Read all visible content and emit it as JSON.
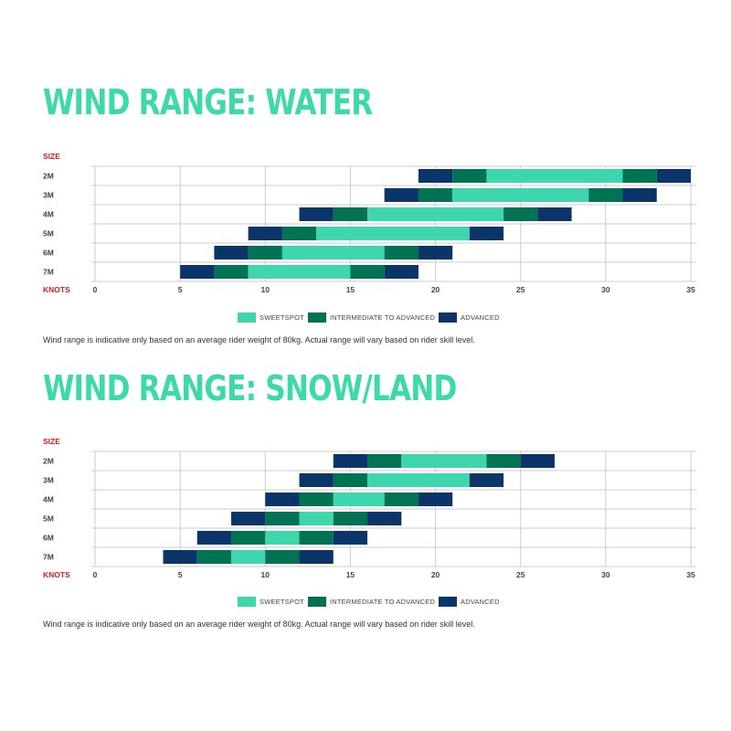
{
  "colors": {
    "title": "#3dd9a8",
    "sweetspot": "#3dd6ad",
    "intermediate": "#007355",
    "advanced": "#0b3468",
    "axis_label": "#d21f1f",
    "grid": "#cccccc"
  },
  "legend": [
    {
      "key": "sweetspot",
      "label": "SWEETSPOT"
    },
    {
      "key": "intermediate",
      "label": "INTERMEDIATE TO ADVANCED"
    },
    {
      "key": "advanced",
      "label": "ADVANCED"
    }
  ],
  "chart_data": [
    {
      "type": "bar",
      "subtype": "stacked-range",
      "title": "WIND RANGE: WATER",
      "ylabel": "SIZE",
      "xlabel": "KNOTS",
      "xlim": [
        0,
        35
      ],
      "xticks": [
        "0",
        "5",
        "10",
        "15",
        "20",
        "25",
        "30",
        "35"
      ],
      "grid": "vertical",
      "categories": [
        "2M",
        "3M",
        "4M",
        "5M",
        "6M",
        "7M"
      ],
      "series": [
        {
          "category": "2M",
          "segments": [
            {
              "start": 19,
              "end": 21,
              "level": "advanced"
            },
            {
              "start": 21,
              "end": 23,
              "level": "intermediate"
            },
            {
              "start": 23,
              "end": 31,
              "level": "sweetspot"
            },
            {
              "start": 31,
              "end": 33,
              "level": "intermediate"
            },
            {
              "start": 33,
              "end": 35,
              "level": "advanced"
            }
          ]
        },
        {
          "category": "3M",
          "segments": [
            {
              "start": 17,
              "end": 19,
              "level": "advanced"
            },
            {
              "start": 19,
              "end": 21,
              "level": "intermediate"
            },
            {
              "start": 21,
              "end": 29,
              "level": "sweetspot"
            },
            {
              "start": 29,
              "end": 31,
              "level": "intermediate"
            },
            {
              "start": 31,
              "end": 33,
              "level": "advanced"
            }
          ]
        },
        {
          "category": "4M",
          "segments": [
            {
              "start": 12,
              "end": 14,
              "level": "advanced"
            },
            {
              "start": 14,
              "end": 16,
              "level": "intermediate"
            },
            {
              "start": 16,
              "end": 24,
              "level": "sweetspot"
            },
            {
              "start": 24,
              "end": 26,
              "level": "intermediate"
            },
            {
              "start": 26,
              "end": 28,
              "level": "advanced"
            }
          ]
        },
        {
          "category": "5M",
          "segments": [
            {
              "start": 9,
              "end": 11,
              "level": "advanced"
            },
            {
              "start": 11,
              "end": 13,
              "level": "intermediate"
            },
            {
              "start": 13,
              "end": 22,
              "level": "sweetspot"
            },
            {
              "start": 22,
              "end": 24,
              "level": "advanced"
            }
          ]
        },
        {
          "category": "6M",
          "segments": [
            {
              "start": 7,
              "end": 9,
              "level": "advanced"
            },
            {
              "start": 9,
              "end": 11,
              "level": "intermediate"
            },
            {
              "start": 11,
              "end": 17,
              "level": "sweetspot"
            },
            {
              "start": 17,
              "end": 19,
              "level": "intermediate"
            },
            {
              "start": 19,
              "end": 21,
              "level": "advanced"
            }
          ]
        },
        {
          "category": "7M",
          "segments": [
            {
              "start": 5,
              "end": 7,
              "level": "advanced"
            },
            {
              "start": 7,
              "end": 9,
              "level": "intermediate"
            },
            {
              "start": 9,
              "end": 15,
              "level": "sweetspot"
            },
            {
              "start": 15,
              "end": 17,
              "level": "intermediate"
            },
            {
              "start": 17,
              "end": 19,
              "level": "advanced"
            }
          ]
        }
      ]
    },
    {
      "type": "bar",
      "subtype": "stacked-range",
      "title": "WIND RANGE: SNOW/LAND",
      "ylabel": "SIZE",
      "xlabel": "KNOTS",
      "xlim": [
        0,
        35
      ],
      "xticks": [
        "0",
        "5",
        "10",
        "15",
        "20",
        "25",
        "30",
        "35"
      ],
      "grid": "vertical",
      "categories": [
        "2M",
        "3M",
        "4M",
        "5M",
        "6M",
        "7M"
      ],
      "series": [
        {
          "category": "2M",
          "segments": [
            {
              "start": 14,
              "end": 16,
              "level": "advanced"
            },
            {
              "start": 16,
              "end": 18,
              "level": "intermediate"
            },
            {
              "start": 18,
              "end": 23,
              "level": "sweetspot"
            },
            {
              "start": 23,
              "end": 25,
              "level": "intermediate"
            },
            {
              "start": 25,
              "end": 27,
              "level": "advanced"
            }
          ]
        },
        {
          "category": "3M",
          "segments": [
            {
              "start": 12,
              "end": 14,
              "level": "advanced"
            },
            {
              "start": 14,
              "end": 16,
              "level": "intermediate"
            },
            {
              "start": 16,
              "end": 22,
              "level": "sweetspot"
            },
            {
              "start": 22,
              "end": 24,
              "level": "advanced"
            }
          ]
        },
        {
          "category": "4M",
          "segments": [
            {
              "start": 10,
              "end": 12,
              "level": "advanced"
            },
            {
              "start": 12,
              "end": 14,
              "level": "intermediate"
            },
            {
              "start": 14,
              "end": 17,
              "level": "sweetspot"
            },
            {
              "start": 17,
              "end": 19,
              "level": "intermediate"
            },
            {
              "start": 19,
              "end": 21,
              "level": "advanced"
            }
          ]
        },
        {
          "category": "5M",
          "segments": [
            {
              "start": 8,
              "end": 10,
              "level": "advanced"
            },
            {
              "start": 10,
              "end": 12,
              "level": "intermediate"
            },
            {
              "start": 12,
              "end": 14,
              "level": "sweetspot"
            },
            {
              "start": 14,
              "end": 16,
              "level": "intermediate"
            },
            {
              "start": 16,
              "end": 18,
              "level": "advanced"
            }
          ]
        },
        {
          "category": "6M",
          "segments": [
            {
              "start": 6,
              "end": 8,
              "level": "advanced"
            },
            {
              "start": 8,
              "end": 10,
              "level": "intermediate"
            },
            {
              "start": 10,
              "end": 12,
              "level": "sweetspot"
            },
            {
              "start": 12,
              "end": 14,
              "level": "intermediate"
            },
            {
              "start": 14,
              "end": 16,
              "level": "advanced"
            }
          ]
        },
        {
          "category": "7M",
          "segments": [
            {
              "start": 4,
              "end": 6,
              "level": "advanced"
            },
            {
              "start": 6,
              "end": 8,
              "level": "intermediate"
            },
            {
              "start": 8,
              "end": 10,
              "level": "sweetspot"
            },
            {
              "start": 10,
              "end": 12,
              "level": "intermediate"
            },
            {
              "start": 12,
              "end": 14,
              "level": "advanced"
            }
          ]
        }
      ]
    }
  ],
  "note": "Wind range is indicative only based on an average rider weight of 80kg. Actual range will vary based on rider skill level."
}
